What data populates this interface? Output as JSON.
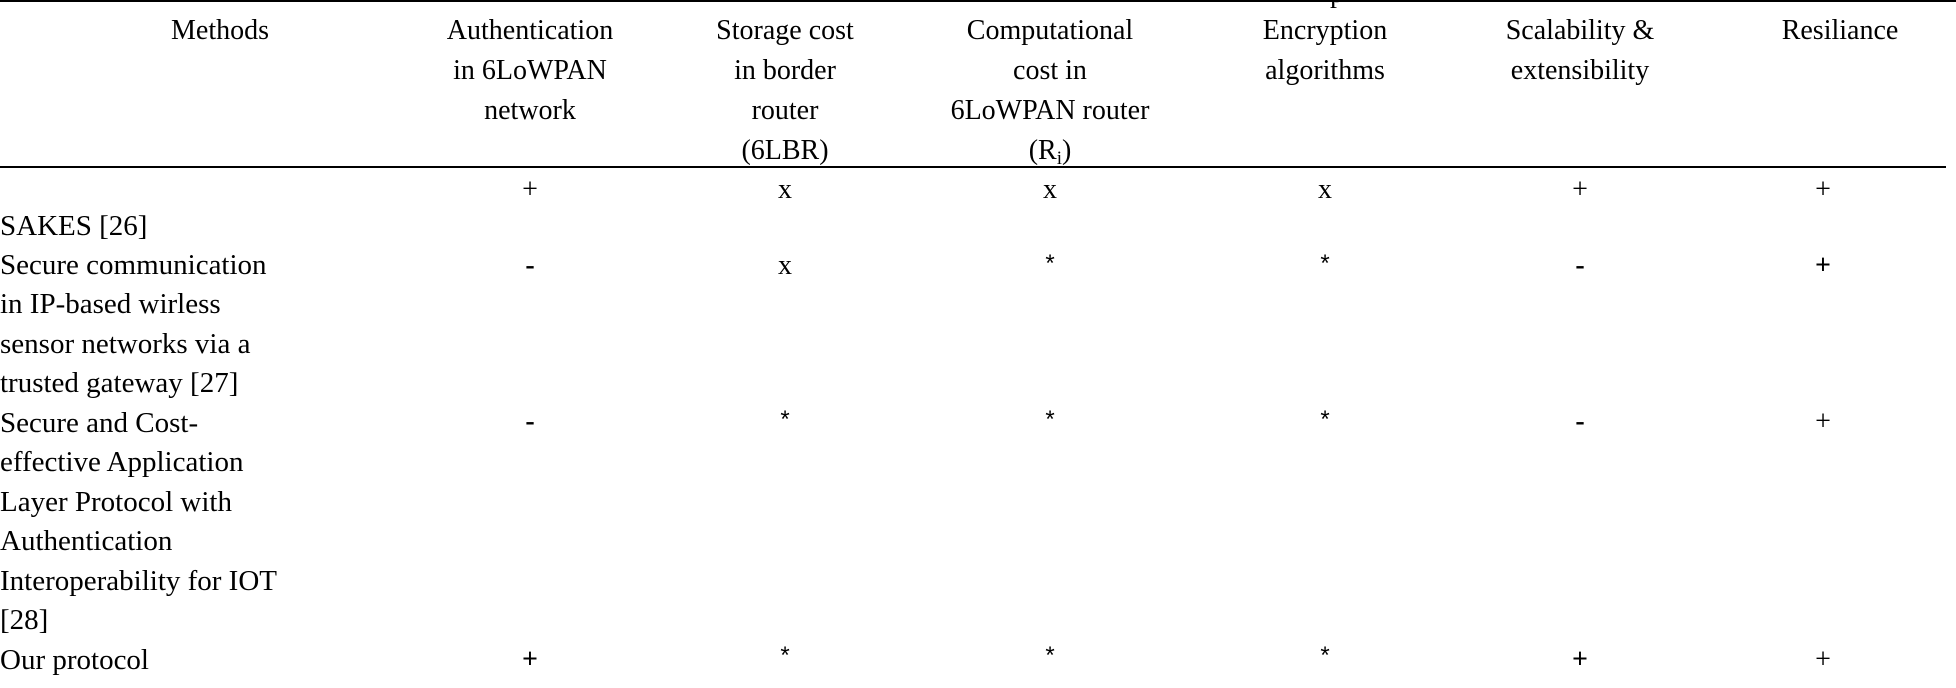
{
  "caption_fragment": "p",
  "headers": {
    "methods": "Methods",
    "authentication": [
      "Authentication",
      "in 6LoWPAN",
      "network"
    ],
    "storage": [
      "Storage cost",
      "in border",
      "router",
      "(6LBR)"
    ],
    "computational": [
      "Computational",
      "cost in",
      "6LoWPAN router"
    ],
    "computational_last": {
      "open": "(R",
      "sub": "i",
      "close": ")"
    },
    "encryption": [
      "Encryption",
      "algorithms"
    ],
    "scalability": [
      "Scalability &",
      "extensibility"
    ],
    "resilience": [
      "Resiliance"
    ]
  },
  "rows": [
    {
      "method_lines": [
        "SAKES [26]"
      ],
      "values": [
        "+",
        "x",
        "x",
        "x",
        "+",
        "+"
      ]
    },
    {
      "method_lines": [
        "Secure communication",
        "in IP-based wirless",
        "sensor networks via a",
        "trusted gateway [27]"
      ],
      "values": [
        "-",
        "x",
        "*",
        "*",
        "-",
        "+"
      ]
    },
    {
      "method_lines": [
        "Secure and Cost-",
        "effective Application",
        "Layer Protocol with",
        "Authentication",
        "Interoperability for IOT",
        "[28]"
      ],
      "values": [
        "-",
        "*",
        "*",
        "*",
        "-",
        "+"
      ]
    },
    {
      "method_lines": [
        "Our protocol"
      ],
      "values": [
        "+",
        "*",
        "*",
        "*",
        "+",
        "+"
      ]
    }
  ]
}
